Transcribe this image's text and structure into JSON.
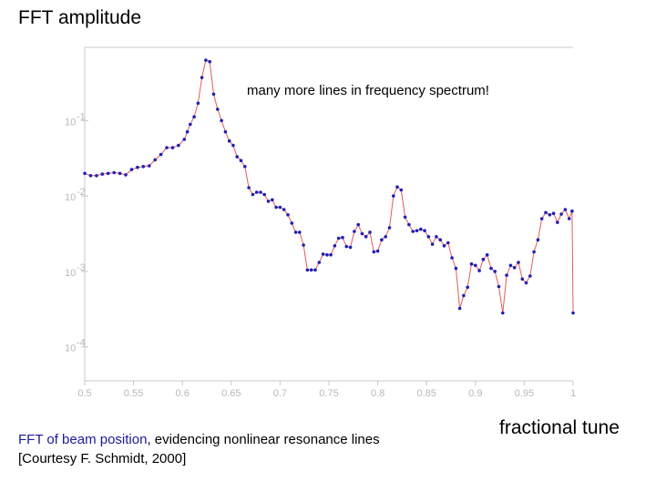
{
  "chart_data": {
    "type": "line",
    "title": "",
    "ylabel": "FFT amplitude",
    "xlabel": "fractional tune",
    "annotation": "many more lines in frequency spectrum!",
    "xlim": [
      0.5,
      1.0
    ],
    "ylim_log10": [
      -4.45,
      -0.03
    ],
    "x_ticks": [
      "0.5",
      "0.55",
      "0.6",
      "0.65",
      "0.7",
      "0.75",
      "0.8",
      "0.85",
      "0.9",
      "0.95",
      "1"
    ],
    "y_ticks": [
      {
        "label": "10",
        "exp": "-1",
        "value_log10": -1
      },
      {
        "label": "10",
        "exp": "-2",
        "value_log10": -2
      },
      {
        "label": "10",
        "exp": "-3",
        "value_log10": -3
      },
      {
        "label": "10",
        "exp": "-4",
        "value_log10": -4
      }
    ],
    "line_color": "#e25b5b",
    "marker_color": "#1f1fb8",
    "series": [
      {
        "x": [
          0.5,
          0.506,
          0.512,
          0.518,
          0.524,
          0.53,
          0.536,
          0.542,
          0.548,
          0.554,
          0.56,
          0.566,
          0.572,
          0.578,
          0.584,
          0.59,
          0.596,
          0.602,
          0.605,
          0.608,
          0.612,
          0.616,
          0.62,
          0.624,
          0.628,
          0.632,
          0.636,
          0.64,
          0.644,
          0.648,
          0.652,
          0.656,
          0.66,
          0.664,
          0.668,
          0.672,
          0.676,
          0.68,
          0.684,
          0.688,
          0.692,
          0.696,
          0.7,
          0.704,
          0.708,
          0.712,
          0.716,
          0.72,
          0.724,
          0.728,
          0.732,
          0.736,
          0.74,
          0.744,
          0.748,
          0.752,
          0.756,
          0.76,
          0.764,
          0.768,
          0.772,
          0.776,
          0.78,
          0.784,
          0.788,
          0.792,
          0.796,
          0.8,
          0.804,
          0.808,
          0.812,
          0.816,
          0.82,
          0.824,
          0.828,
          0.832,
          0.836,
          0.84,
          0.844,
          0.848,
          0.852,
          0.856,
          0.86,
          0.864,
          0.868,
          0.872,
          0.876,
          0.88,
          0.884,
          0.888,
          0.892,
          0.896,
          0.9,
          0.904,
          0.908,
          0.912,
          0.916,
          0.92,
          0.924,
          0.928,
          0.932,
          0.936,
          0.94,
          0.944,
          0.948,
          0.952,
          0.956,
          0.96,
          0.964,
          0.968,
          0.972,
          0.976,
          0.98,
          0.984,
          0.988,
          0.992,
          0.996,
          0.999,
          1.0
        ],
        "y_log10": [
          -1.7,
          -1.73,
          -1.73,
          -1.71,
          -1.7,
          -1.69,
          -1.7,
          -1.72,
          -1.65,
          -1.62,
          -1.61,
          -1.6,
          -1.52,
          -1.45,
          -1.36,
          -1.36,
          -1.33,
          -1.25,
          -1.15,
          -1.05,
          -0.95,
          -0.77,
          -0.43,
          -0.2,
          -0.22,
          -0.65,
          -0.85,
          -1.0,
          -1.15,
          -1.27,
          -1.33,
          -1.48,
          -1.53,
          -1.61,
          -1.89,
          -1.98,
          -1.95,
          -1.95,
          -1.98,
          -2.07,
          -2.05,
          -2.15,
          -2.15,
          -2.18,
          -2.25,
          -2.36,
          -2.48,
          -2.48,
          -2.65,
          -2.98,
          -2.98,
          -2.98,
          -2.88,
          -2.77,
          -2.78,
          -2.78,
          -2.66,
          -2.56,
          -2.55,
          -2.67,
          -2.68,
          -2.47,
          -2.38,
          -2.5,
          -2.54,
          -2.48,
          -2.74,
          -2.73,
          -2.58,
          -2.54,
          -2.42,
          -2.0,
          -1.88,
          -1.92,
          -2.28,
          -2.38,
          -2.47,
          -2.46,
          -2.44,
          -2.46,
          -2.54,
          -2.64,
          -2.54,
          -2.58,
          -2.66,
          -2.62,
          -2.82,
          -2.96,
          -3.49,
          -3.32,
          -3.21,
          -2.9,
          -2.92,
          -2.99,
          -2.84,
          -2.78,
          -2.96,
          -3.0,
          -3.2,
          -3.55,
          -3.05,
          -2.92,
          -2.95,
          -2.88,
          -3.1,
          -3.15,
          -3.06,
          -2.74,
          -2.58,
          -2.3,
          -2.22,
          -2.25,
          -2.23,
          -2.35,
          -2.24,
          -2.18,
          -2.3,
          -2.2,
          -3.55
        ]
      }
    ]
  },
  "caption": {
    "line1_blue": "FFT of beam position",
    "line1_rest": ", evidencing nonlinear resonance lines",
    "line2": "[Courtesy F. Schmidt, 2000]"
  }
}
